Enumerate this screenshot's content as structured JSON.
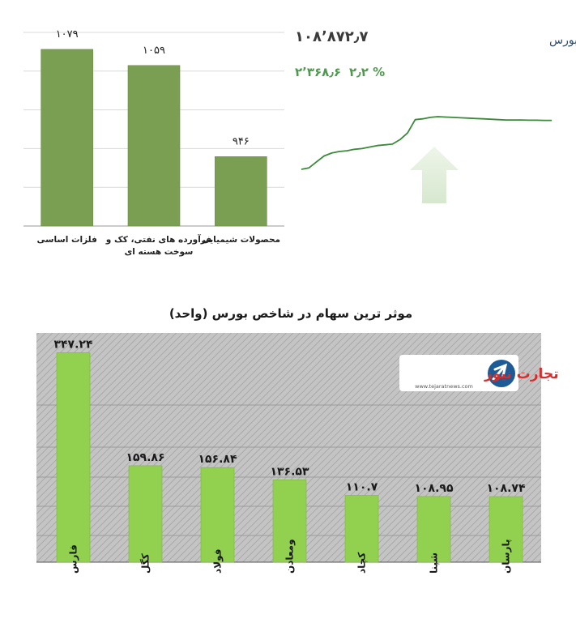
{
  "chart_data": [
    {
      "type": "bar",
      "categories": [
        "فلزات اساسی",
        "فرآورده های نفتی، کک و سوخت هسته ای",
        "محصولات شیمیایی"
      ],
      "category_label_lines": [
        [
          "فلزات اساسی"
        ],
        [
          "فرآورده های نفتی، کک و",
          "سوخت هسته ای"
        ],
        [
          "محصولات شیمیایی"
        ]
      ],
      "values": [
        1079,
        1059,
        946
      ],
      "value_labels": [
        "۱۰۷۹",
        "۱۰۵۹",
        "۹۴۶"
      ],
      "ylim": [
        860,
        1100
      ],
      "grid": true,
      "bar_color": "#7a9e52"
    },
    {
      "type": "line",
      "title": "کل بورس",
      "index_value": "۱۰۸٬۸۷۲٫۷",
      "change_value": "۲٬۳۶۸٫۶",
      "change_percent": "۲٫۲ %",
      "direction": "up",
      "line_color": "#3a8a3a",
      "values": [
        0,
        2,
        10,
        18,
        22,
        24,
        25,
        27,
        28,
        30,
        32,
        33,
        34,
        40,
        49,
        67,
        68,
        70,
        71,
        70.5,
        70,
        69.5,
        69,
        68.5,
        68,
        67.5,
        67,
        66.5,
        66.5,
        66.5,
        66.2,
        66.2,
        66,
        66
      ]
    },
    {
      "type": "bar",
      "title": "موثر ترین سهام در شاخص بورس (واحد)",
      "categories": [
        "فارس",
        "کگل",
        "فولاد",
        "ومعادن",
        "کچاد",
        "شپنا",
        "پارسان"
      ],
      "values": [
        347.24,
        159.86,
        156.84,
        136.53,
        110.7,
        108.95,
        108.74
      ],
      "value_labels": [
        "۳۴۷.۲۴",
        "۱۵۹.۸۶",
        "۱۵۶.۸۴",
        "۱۳۶.۵۳",
        "۱۱۰.۷",
        "۱۰۸.۹۵",
        "۱۰۸.۷۴"
      ],
      "ylim": [
        0,
        380
      ],
      "grid": true,
      "bar_color": "#92d050"
    }
  ],
  "logo": {
    "brand_text": "تجارت نیوز",
    "url_text": "www.tejaratnews.com"
  }
}
